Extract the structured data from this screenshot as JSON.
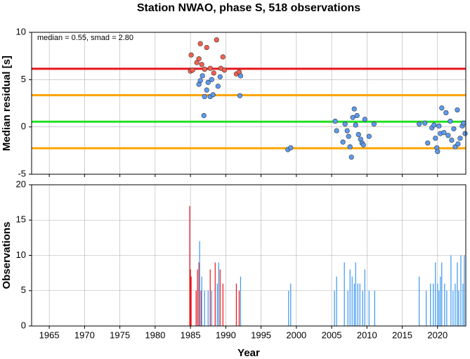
{
  "chart_data": [
    {
      "type": "scatter",
      "title": "Station NWAO, phase S, 518 observations",
      "ylabel": "Median residual [s]",
      "annotation": "median = 0.55, smad = 2.80",
      "xlim": [
        1962.5,
        2024
      ],
      "ylim": [
        -5,
        10
      ],
      "yticks": [
        -5,
        0,
        5,
        10
      ],
      "grid": true,
      "hlines": [
        {
          "value": 6.15,
          "color": "#e8151b"
        },
        {
          "value": 3.35,
          "color": "#ffa500"
        },
        {
          "value": 0.55,
          "color": "#22e022"
        },
        {
          "value": -2.25,
          "color": "#ffa500"
        }
      ],
      "series": [
        {
          "color": "#f4604f",
          "x": [
            1985.1,
            1985.0,
            1985.3,
            1985.9,
            1986.2,
            1986.4,
            1986.6,
            1987.0,
            1987.3,
            1987.8,
            1988.3,
            1988.7,
            1989.3,
            1989.6,
            1989.8,
            1991.5,
            1991.9
          ],
          "values": [
            7.6,
            5.9,
            6.0,
            6.8,
            7.2,
            8.8,
            6.6,
            6.1,
            8.4,
            6.2,
            5.7,
            9.2,
            6.2,
            7.4,
            6.0,
            5.6,
            5.8
          ]
        },
        {
          "color": "#5b9bf0",
          "x": [
            1986.2,
            1986.4,
            1986.7,
            1986.9,
            1987.0,
            1987.3,
            1987.5,
            1987.8,
            1988.2,
            1988.0,
            1988.9,
            1989.2,
            1992.1,
            1992.0,
            1998.8,
            1999.2,
            2005.5,
            2005.7,
            2006.6,
            2006.9,
            2007.2,
            2007.4,
            2007.6,
            2007.8,
            2008.0,
            2008.2,
            2008.4,
            2008.6,
            2008.8,
            2009.1,
            2009.3,
            2009.5,
            2009.7,
            2010.3,
            2011.0,
            2017.4,
            2018.2,
            2018.6,
            2019.2,
            2019.5,
            2019.7,
            2019.9,
            2020.0,
            2020.2,
            2020.4,
            2020.6,
            2020.9,
            2021.2,
            2021.5,
            2021.8,
            2022.0,
            2022.3,
            2022.5,
            2022.8,
            2022.9,
            2023.2,
            2023.5,
            2023.7,
            2023.9
          ],
          "values": [
            4.5,
            4.9,
            5.4,
            1.2,
            3.2,
            3.9,
            4.7,
            3.2,
            3.4,
            5.0,
            4.3,
            5.3,
            5.4,
            3.3,
            -2.4,
            -2.2,
            0.6,
            -0.4,
            -1.6,
            0.3,
            -0.4,
            -1.0,
            -2.1,
            -3.2,
            1.0,
            1.9,
            0.2,
            1.2,
            -0.8,
            -1.3,
            -1.7,
            -1.9,
            0.8,
            -1.0,
            0.3,
            0.3,
            0.4,
            -1.7,
            -0.1,
            0.2,
            -1.2,
            -2.2,
            -2.6,
            0.1,
            -0.7,
            2.0,
            -0.6,
            1.5,
            -0.9,
            0.6,
            -1.4,
            -0.2,
            -2.1,
            1.8,
            -1.8,
            -1.2,
            0.1,
            0.4,
            -0.7
          ]
        }
      ]
    },
    {
      "type": "bar",
      "ylabel": "Observations",
      "xlabel": "Year",
      "xlim": [
        1962.5,
        2024
      ],
      "xticks": [
        1965,
        1970,
        1975,
        1980,
        1985,
        1990,
        1995,
        2000,
        2005,
        2010,
        2015,
        2020
      ],
      "ylim": [
        0,
        20
      ],
      "yticks": [
        0,
        5,
        10,
        15,
        20
      ],
      "grid": true,
      "series": [
        {
          "color": "#e8151b",
          "x": [
            1984.9,
            1985.0,
            1985.1,
            1985.8,
            1986.0,
            1986.2,
            1986.5,
            1987.8,
            1988.5,
            1989.2,
            1989.6,
            1991.5,
            1991.9
          ],
          "values": [
            17,
            8,
            7,
            5,
            8,
            9,
            5,
            8,
            9,
            8,
            6,
            6,
            5
          ]
        },
        {
          "color": "#3a97ef",
          "x": [
            1986.3,
            1986.6,
            1987.0,
            1987.5,
            1988.0,
            1988.8,
            1989.0,
            1992.1,
            1998.9,
            1999.2,
            2005.4,
            2005.7,
            2006.8,
            2007.3,
            2007.6,
            2007.9,
            2008.2,
            2008.4,
            2008.7,
            2009.0,
            2009.4,
            2009.7,
            2010.3,
            2011.1,
            2017.4,
            2018.4,
            2019.0,
            2019.4,
            2019.7,
            2020.0,
            2020.2,
            2020.4,
            2020.6,
            2021.0,
            2021.3,
            2021.9,
            2022.2,
            2022.5,
            2022.8,
            2023.0,
            2023.3,
            2023.6,
            2023.8
          ],
          "values": [
            12,
            7,
            5,
            5,
            5,
            6,
            9,
            7,
            5,
            6,
            5,
            7,
            9,
            5,
            8,
            7,
            6,
            9,
            6,
            6,
            5,
            8,
            5,
            5,
            7,
            5,
            6,
            6,
            9,
            6,
            5,
            7,
            9,
            6,
            5,
            10,
            5,
            6,
            9,
            5,
            10,
            6,
            10
          ]
        }
      ]
    }
  ]
}
